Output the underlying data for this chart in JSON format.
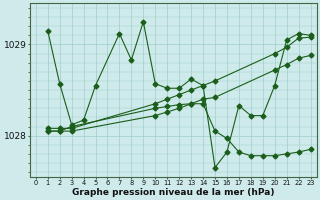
{
  "title": "Graphe pression niveau de la mer (hPa)",
  "bg_color": "#ceeaea",
  "line_color": "#1a5e1a",
  "grid_color": "#a0cccc",
  "ylabel_ticks": [
    1028,
    1029
  ],
  "xlim": [
    -0.5,
    23.5
  ],
  "ylim": [
    1027.55,
    1029.45
  ],
  "xticks": [
    0,
    1,
    2,
    3,
    4,
    5,
    6,
    7,
    8,
    9,
    10,
    11,
    12,
    13,
    14,
    15,
    16,
    17,
    18,
    19,
    20,
    21,
    22,
    23
  ],
  "lineA_x": [
    1,
    2,
    3,
    4,
    5,
    7,
    8,
    9,
    10,
    11,
    12,
    13,
    14,
    15,
    16,
    17,
    18,
    19,
    20,
    21,
    22,
    23
  ],
  "lineA_y": [
    1029.15,
    1028.57,
    1028.12,
    1028.17,
    1028.55,
    1029.12,
    1028.83,
    1029.25,
    1028.57,
    1028.52,
    1028.52,
    1028.62,
    1028.55,
    1027.65,
    1027.82,
    1028.33,
    1028.22,
    1028.22,
    1028.55,
    1029.05,
    1029.12,
    1029.1
  ],
  "lineB_x": [
    1,
    2,
    3,
    10,
    11,
    12,
    13,
    14,
    15,
    20,
    21,
    22,
    23
  ],
  "lineB_y": [
    1028.08,
    1028.08,
    1028.08,
    1028.35,
    1028.4,
    1028.45,
    1028.5,
    1028.55,
    1028.6,
    1028.9,
    1028.97,
    1029.07,
    1029.08
  ],
  "lineC_x": [
    1,
    2,
    3,
    10,
    11,
    12,
    13,
    14,
    15,
    20,
    21,
    22,
    23
  ],
  "lineC_y": [
    1028.05,
    1028.05,
    1028.05,
    1028.22,
    1028.26,
    1028.3,
    1028.35,
    1028.4,
    1028.42,
    1028.72,
    1028.78,
    1028.85,
    1028.88
  ],
  "lineD_x": [
    1,
    2,
    3,
    10,
    11,
    12,
    13,
    14,
    15,
    16,
    17,
    18,
    19,
    20,
    21,
    22,
    23
  ],
  "lineD_y": [
    1028.05,
    1028.05,
    1028.1,
    1028.3,
    1028.32,
    1028.34,
    1028.35,
    1028.35,
    1028.05,
    1027.97,
    1027.82,
    1027.78,
    1027.78,
    1027.78,
    1027.8,
    1027.82,
    1027.85
  ]
}
